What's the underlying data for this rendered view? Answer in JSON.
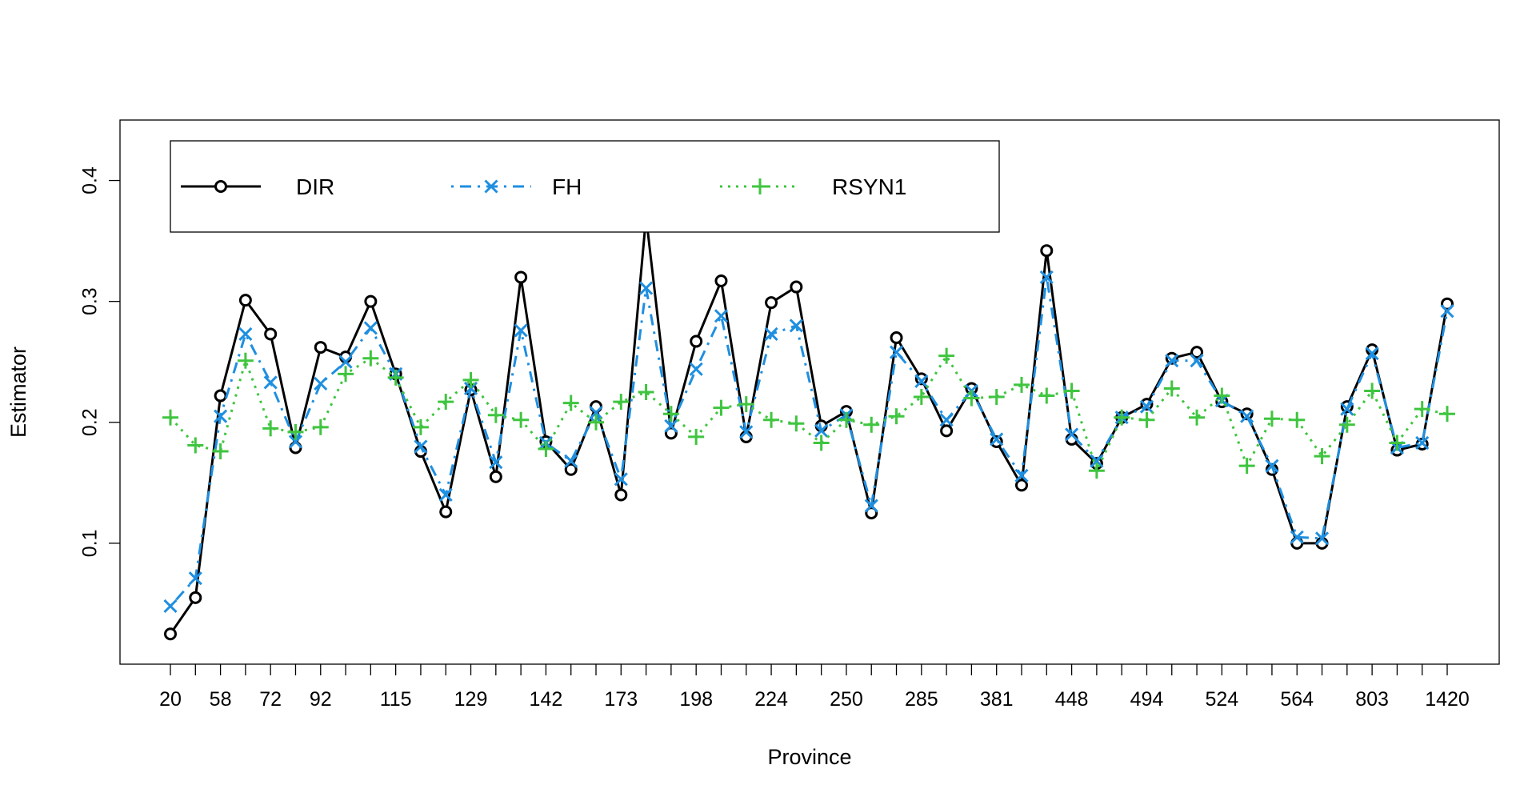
{
  "chart_data": {
    "type": "line",
    "title": "",
    "xlabel": "Province",
    "ylabel": "Estimator",
    "ylim": [
      0.0,
      0.45
    ],
    "y_ticks": [
      0.1,
      0.2,
      0.3,
      0.4
    ],
    "y_tick_labels": [
      "0.1",
      "0.2",
      "0.3",
      "0.4"
    ],
    "x_tick_labels": [
      "20",
      "58",
      "72",
      "92",
      "115",
      "129",
      "142",
      "173",
      "198",
      "224",
      "250",
      "285",
      "381",
      "448",
      "494",
      "524",
      "564",
      "803",
      "1420"
    ],
    "x_tick_positions": [
      1,
      3,
      5,
      7,
      10,
      13,
      16,
      19,
      22,
      25,
      28,
      31,
      34,
      37,
      40,
      43,
      46,
      49,
      52
    ],
    "grid": false,
    "legend_position": "top-left",
    "n_points": 52,
    "series": [
      {
        "name": "DIR",
        "color": "#000000",
        "line_style": "solid",
        "marker": "circle",
        "values": [
          0.025,
          0.055,
          0.222,
          0.301,
          0.273,
          0.179,
          0.262,
          0.254,
          0.3,
          0.24,
          0.176,
          0.126,
          0.227,
          0.155,
          0.32,
          0.184,
          0.161,
          0.213,
          0.14,
          0.37,
          0.191,
          0.267,
          0.317,
          0.188,
          0.299,
          0.312,
          0.197,
          0.209,
          0.125,
          0.27,
          0.236,
          0.193,
          0.228,
          0.184,
          0.148,
          0.342,
          0.186,
          0.166,
          0.204,
          0.215,
          0.253,
          0.258,
          0.217,
          0.207,
          0.161,
          0.1,
          0.1,
          0.213,
          0.26,
          0.177,
          0.182,
          0.298
        ]
      },
      {
        "name": "FH",
        "color": "#1f8fe0",
        "line_style": "dotdash",
        "marker": "x",
        "values": [
          0.048,
          0.071,
          0.205,
          0.273,
          0.233,
          0.184,
          0.232,
          0.25,
          0.278,
          0.24,
          0.18,
          0.14,
          0.228,
          0.167,
          0.276,
          0.183,
          0.168,
          0.208,
          0.153,
          0.311,
          0.197,
          0.244,
          0.288,
          0.192,
          0.273,
          0.28,
          0.193,
          0.206,
          0.131,
          0.258,
          0.234,
          0.202,
          0.226,
          0.186,
          0.156,
          0.32,
          0.19,
          0.168,
          0.204,
          0.213,
          0.251,
          0.251,
          0.218,
          0.205,
          0.164,
          0.105,
          0.104,
          0.211,
          0.257,
          0.179,
          0.183,
          0.292
        ]
      },
      {
        "name": "RSYN1",
        "color": "#3fc53f",
        "line_style": "dotted",
        "marker": "plus",
        "values": [
          0.204,
          0.181,
          0.176,
          0.251,
          0.195,
          0.192,
          0.196,
          0.24,
          0.253,
          0.237,
          0.196,
          0.217,
          0.235,
          0.206,
          0.202,
          0.178,
          0.216,
          0.2,
          0.217,
          0.225,
          0.207,
          0.188,
          0.212,
          0.215,
          0.202,
          0.199,
          0.183,
          0.202,
          0.198,
          0.205,
          0.221,
          0.255,
          0.22,
          0.221,
          0.231,
          0.222,
          0.226,
          0.16,
          0.204,
          0.202,
          0.228,
          0.204,
          0.222,
          0.164,
          0.203,
          0.202,
          0.172,
          0.198,
          0.226,
          0.183,
          0.211,
          0.207
        ]
      }
    ]
  }
}
